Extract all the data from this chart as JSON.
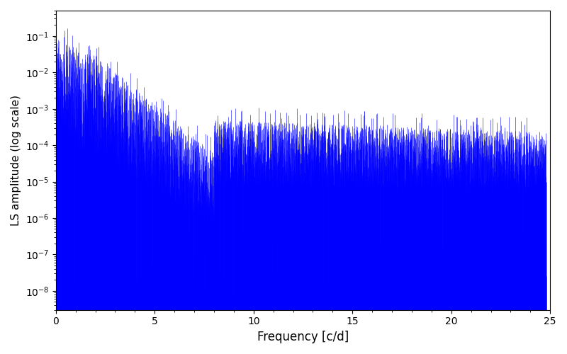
{
  "title": "",
  "xlabel": "Frequency [c/d]",
  "ylabel": "LS amplitude (log scale)",
  "xlim": [
    0,
    25
  ],
  "ylim": [
    3e-09,
    0.5
  ],
  "yscale": "log",
  "line_color": "blue",
  "line_width": 0.4,
  "figsize": [
    8.0,
    5.0
  ],
  "dpi": 100,
  "freq_max": 24.8,
  "freq_resolution": 0.005,
  "seed": 42,
  "background_color": "#ffffff"
}
